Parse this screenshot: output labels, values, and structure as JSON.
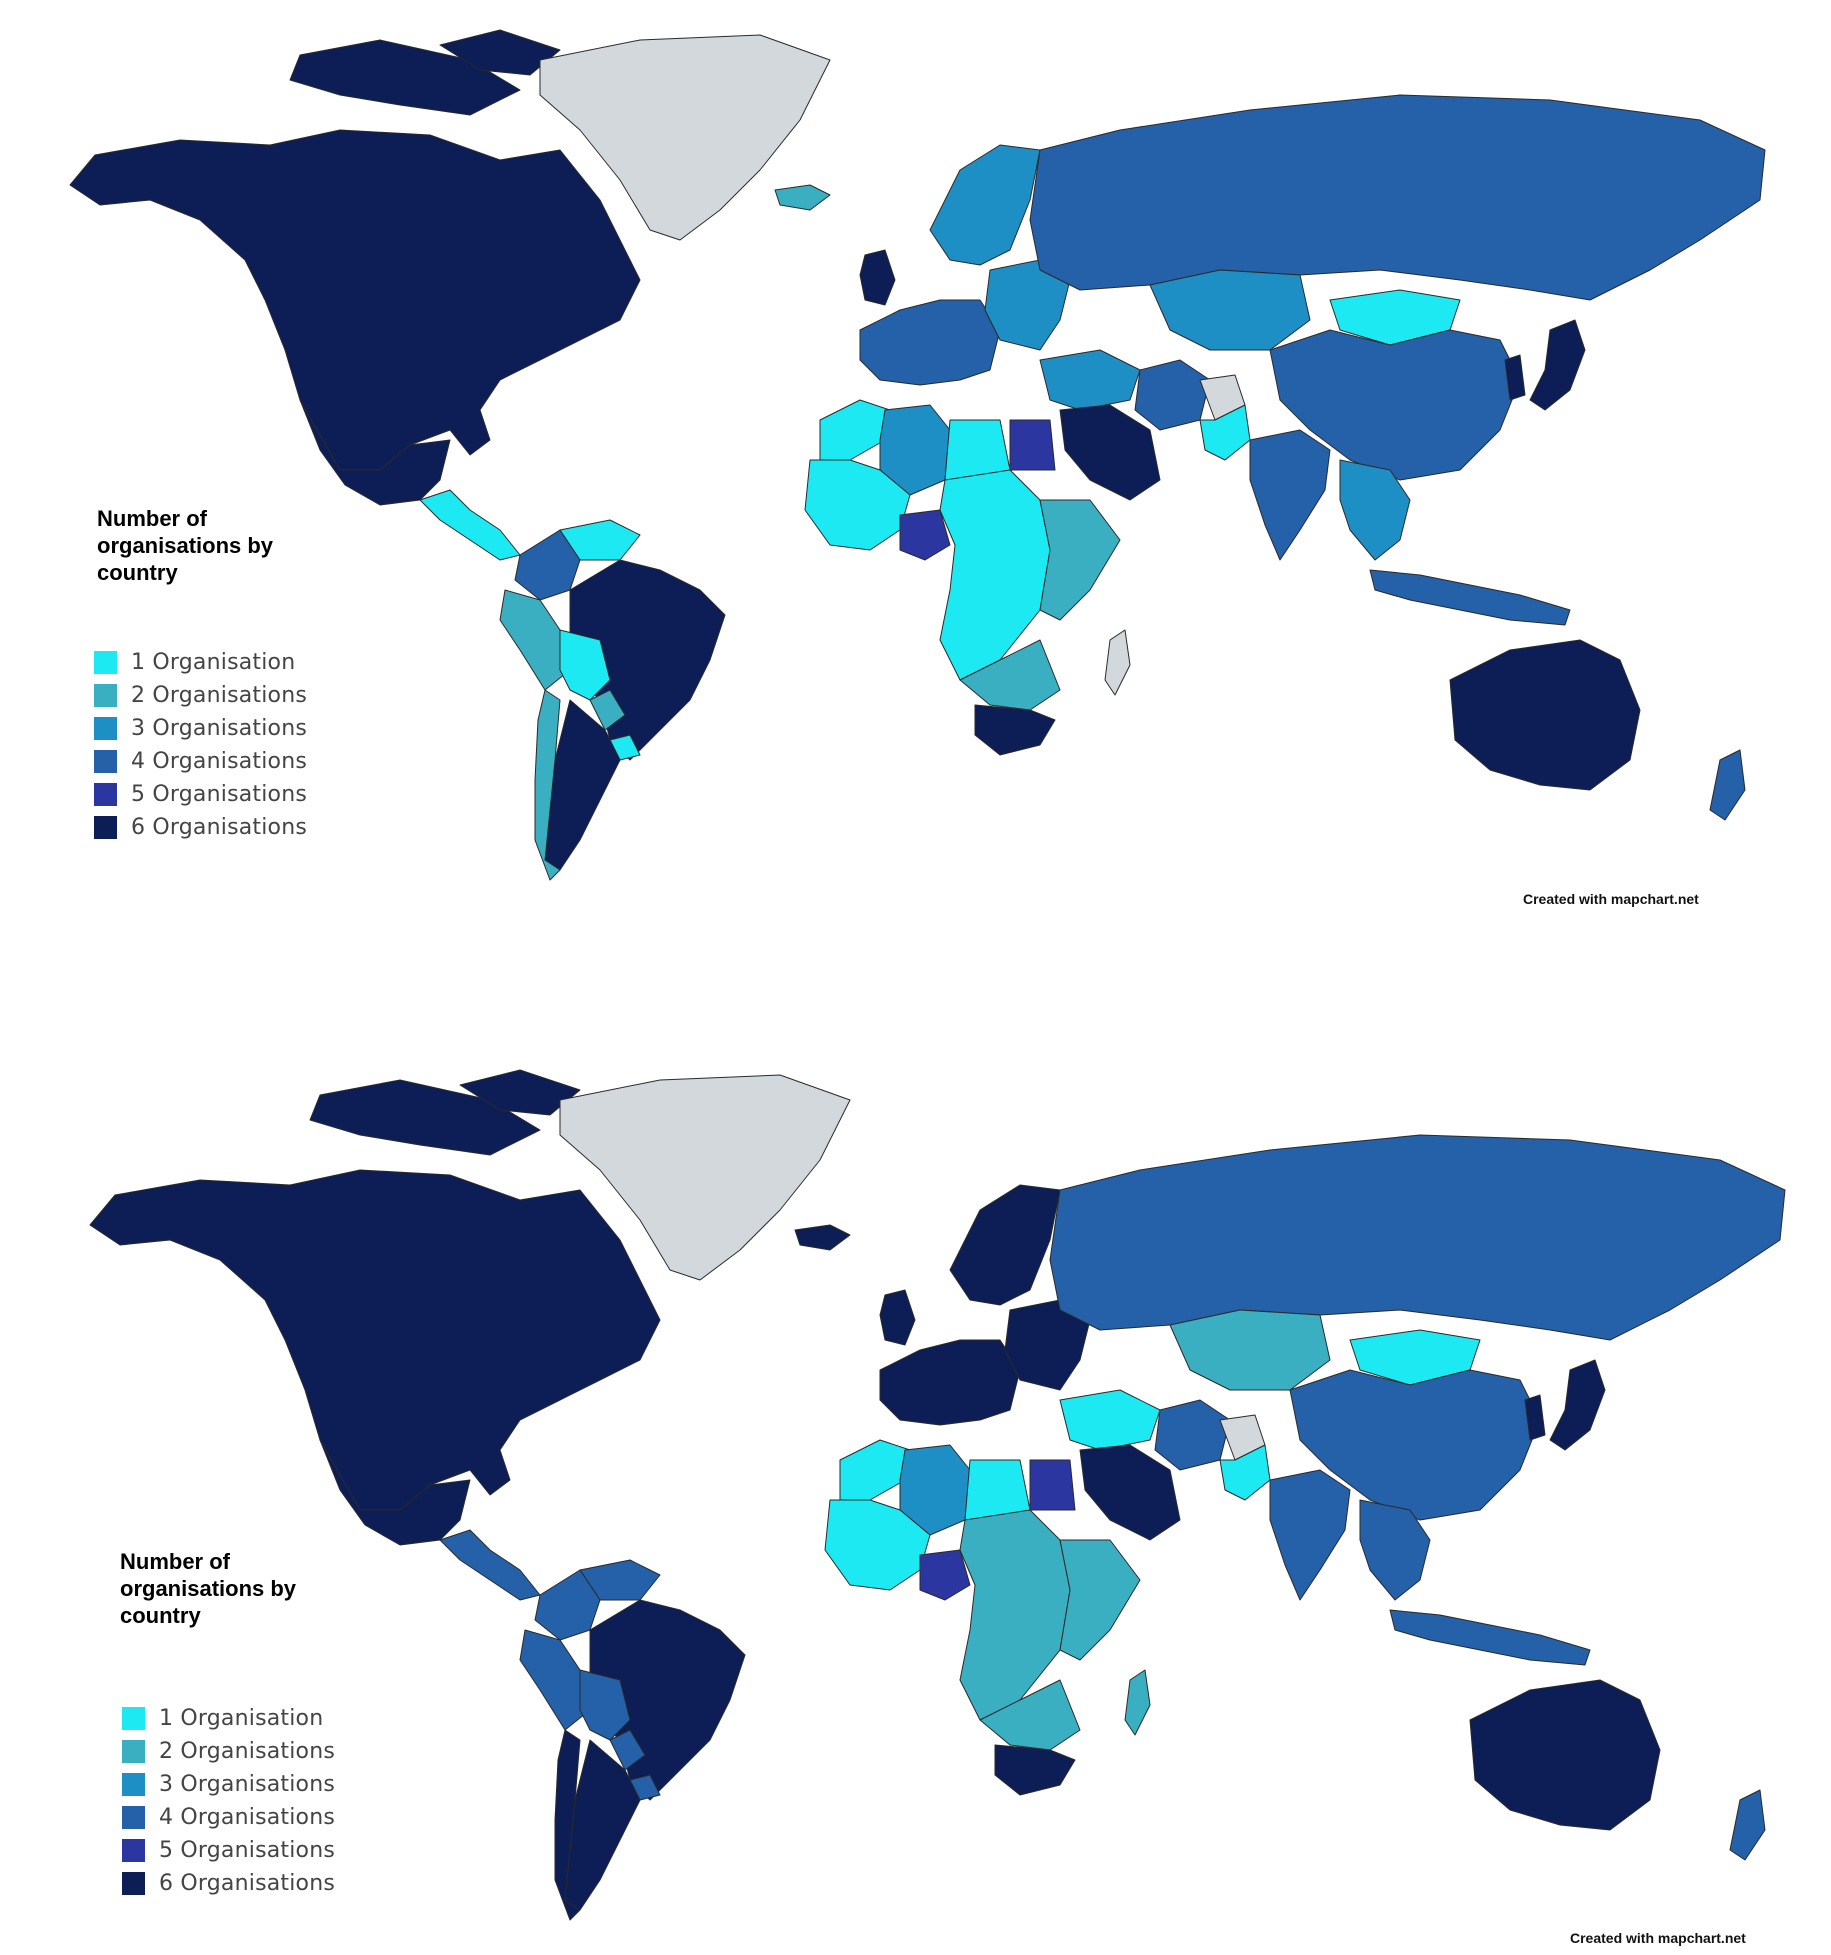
{
  "colors": {
    "c1": "#1DE9F3",
    "c2": "#3AAFC2",
    "c3": "#1E8FC4",
    "c4": "#2461A8",
    "c5": "#2C36A0",
    "c6": "#0C1E55",
    "nodata": "#D2D8DC",
    "border": "#2a2a2a"
  },
  "maps": [
    {
      "legend_title_lines": [
        "Number of",
        "organisations by",
        "country"
      ],
      "legend": [
        "1 Organisation",
        "2 Organisations",
        "3 Organisations",
        "4 Organisations",
        "5 Organisations",
        "6 Organisations"
      ],
      "credit": "Created with mapchart.net",
      "regions": {
        "north_america": "c6",
        "greenland": "c0",
        "iceland": "c2",
        "mexico": "c6",
        "central_america": "c1",
        "colombia": "c4",
        "venezuela": "c1",
        "brazil": "c6",
        "peru": "c2",
        "bolivia": "c1",
        "paraguay": "c2",
        "argentina": "c6",
        "chile": "c2",
        "uruguay": "c1",
        "uk": "c6",
        "scandinavia": "c3",
        "western_europe": "c4",
        "eastern_europe": "c3",
        "russia": "c4",
        "kazakhstan": "c3",
        "mongolia": "c1",
        "china": "c4",
        "japan": "c6",
        "korea": "c6",
        "india": "c4",
        "middle_east": "c3",
        "saudi": "c6",
        "iran": "c4",
        "afghanistan": "c0",
        "pakistan": "c1",
        "southeast_asia": "c3",
        "indonesia": "c4",
        "australia": "c6",
        "new_zealand": "c4",
        "north_africa_west": "c1",
        "algeria": "c3",
        "libya": "c1",
        "egypt": "c5",
        "nigeria": "c5",
        "west_africa": "c1",
        "central_africa": "c1",
        "east_africa": "c2",
        "southern_africa": "c2",
        "south_africa": "c6",
        "madagascar": "c0"
      }
    },
    {
      "legend_title_lines": [
        "Number of",
        "organisations by",
        "country"
      ],
      "legend": [
        "1 Organisation",
        "2 Organisations",
        "3 Organisations",
        "4 Organisations",
        "5 Organisations",
        "6 Organisations"
      ],
      "credit": "Created with mapchart.net",
      "regions": {
        "north_america": "c6",
        "greenland": "c0",
        "iceland": "c6",
        "mexico": "c6",
        "central_america": "c4",
        "colombia": "c4",
        "venezuela": "c4",
        "brazil": "c6",
        "peru": "c4",
        "bolivia": "c4",
        "paraguay": "c4",
        "argentina": "c6",
        "chile": "c6",
        "uruguay": "c4",
        "uk": "c6",
        "scandinavia": "c6",
        "western_europe": "c6",
        "eastern_europe": "c6",
        "russia": "c4",
        "kazakhstan": "c2",
        "mongolia": "c1",
        "china": "c4",
        "japan": "c6",
        "korea": "c6",
        "india": "c4",
        "middle_east": "c1",
        "saudi": "c6",
        "iran": "c4",
        "afghanistan": "c0",
        "pakistan": "c1",
        "southeast_asia": "c4",
        "indonesia": "c4",
        "australia": "c6",
        "new_zealand": "c4",
        "north_africa_west": "c1",
        "algeria": "c3",
        "libya": "c1",
        "egypt": "c5",
        "nigeria": "c5",
        "west_africa": "c1",
        "central_africa": "c2",
        "east_africa": "c2",
        "southern_africa": "c2",
        "south_africa": "c6",
        "madagascar": "c2"
      }
    }
  ]
}
